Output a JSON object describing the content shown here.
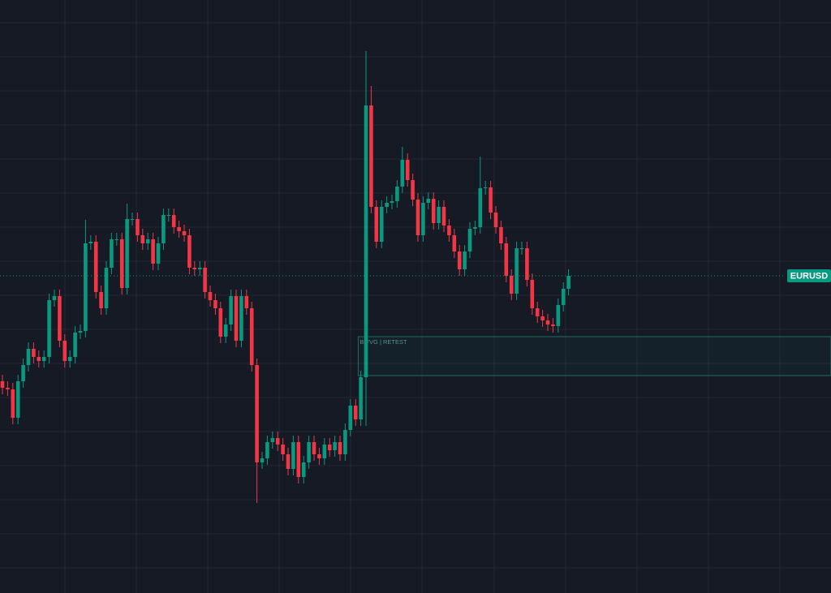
{
  "chart_data": {
    "type": "candlestick",
    "symbol": "EURUSD",
    "up_color": "#089981",
    "down_color": "#f23645",
    "ylim": [
      0,
      731
    ],
    "open": [
      261,
      253,
      251,
      216,
      261,
      281,
      301,
      291,
      286,
      291,
      361,
      366,
      311,
      286,
      291,
      321,
      323,
      431,
      433,
      371,
      351,
      401,
      436,
      436,
      376,
      461,
      461,
      441,
      431,
      436,
      406,
      431,
      466,
      466,
      451,
      446,
      441,
      401,
      399,
      401,
      371,
      361,
      351,
      316,
      331,
      366,
      311,
      366,
      351,
      281,
      161,
      166,
      186,
      191,
      183,
      171,
      153,
      186,
      143,
      161,
      186,
      171,
      166,
      183,
      176,
      186,
      171,
      201,
      231,
      214,
      266,
      601,
      476,
      433,
      476,
      481,
      483,
      501,
      534,
      509,
      485,
      441,
      481,
      486,
      456,
      476,
      453,
      441,
      421,
      399,
      421,
      449,
      451,
      499,
      500,
      469,
      451,
      431,
      391,
      369,
      425,
      425,
      386,
      351,
      341,
      336,
      331,
      329,
      355,
      375
    ],
    "high": [
      269,
      261,
      259,
      269,
      289,
      309,
      309,
      299,
      299,
      369,
      374,
      374,
      319,
      299,
      329,
      331,
      460,
      441,
      441,
      379,
      409,
      444,
      444,
      444,
      480,
      469,
      469,
      449,
      444,
      444,
      439,
      474,
      474,
      474,
      459,
      454,
      449,
      409,
      409,
      409,
      379,
      369,
      359,
      339,
      374,
      374,
      374,
      374,
      359,
      289,
      174,
      194,
      199,
      199,
      191,
      179,
      194,
      194,
      169,
      194,
      194,
      179,
      191,
      191,
      194,
      194,
      209,
      239,
      239,
      274,
      668,
      625,
      484,
      484,
      489,
      491,
      509,
      550,
      542,
      517,
      493,
      489,
      494,
      494,
      484,
      484,
      461,
      449,
      429,
      429,
      457,
      459,
      538,
      508,
      508,
      477,
      459,
      439,
      399,
      433,
      433,
      433,
      394,
      359,
      349,
      344,
      339,
      363,
      383,
      399
    ],
    "low": [
      245,
      243,
      208,
      208,
      253,
      273,
      283,
      278,
      278,
      283,
      353,
      303,
      278,
      278,
      283,
      313,
      315,
      423,
      363,
      343,
      343,
      393,
      428,
      368,
      368,
      453,
      433,
      423,
      423,
      398,
      398,
      423,
      458,
      443,
      438,
      433,
      393,
      391,
      391,
      363,
      353,
      343,
      308,
      308,
      323,
      303,
      303,
      343,
      273,
      111,
      153,
      158,
      178,
      175,
      163,
      145,
      145,
      135,
      135,
      153,
      163,
      158,
      158,
      168,
      168,
      163,
      163,
      193,
      206,
      206,
      206,
      468,
      425,
      425,
      468,
      473,
      475,
      493,
      501,
      477,
      433,
      433,
      473,
      448,
      448,
      445,
      433,
      413,
      391,
      391,
      413,
      441,
      443,
      491,
      461,
      443,
      423,
      383,
      361,
      361,
      417,
      378,
      343,
      333,
      328,
      323,
      321,
      321,
      347,
      367
    ],
    "close": [
      253,
      251,
      216,
      261,
      281,
      301,
      291,
      286,
      291,
      361,
      366,
      311,
      286,
      291,
      321,
      323,
      431,
      433,
      371,
      351,
      401,
      436,
      436,
      376,
      461,
      461,
      441,
      431,
      436,
      406,
      431,
      466,
      466,
      451,
      446,
      441,
      401,
      399,
      401,
      371,
      361,
      351,
      316,
      331,
      366,
      311,
      366,
      351,
      281,
      161,
      166,
      186,
      191,
      183,
      171,
      153,
      186,
      143,
      161,
      186,
      171,
      166,
      183,
      176,
      186,
      171,
      201,
      231,
      214,
      266,
      601,
      476,
      433,
      476,
      481,
      483,
      501,
      534,
      509,
      485,
      441,
      481,
      486,
      456,
      476,
      453,
      441,
      421,
      399,
      421,
      449,
      451,
      499,
      500,
      469,
      451,
      431,
      391,
      369,
      425,
      425,
      386,
      351,
      341,
      336,
      331,
      329,
      355,
      375,
      391
    ],
    "zone": {
      "label": "B FVG | RETEST",
      "top": 316,
      "bottom": 268,
      "start": 69
    }
  }
}
